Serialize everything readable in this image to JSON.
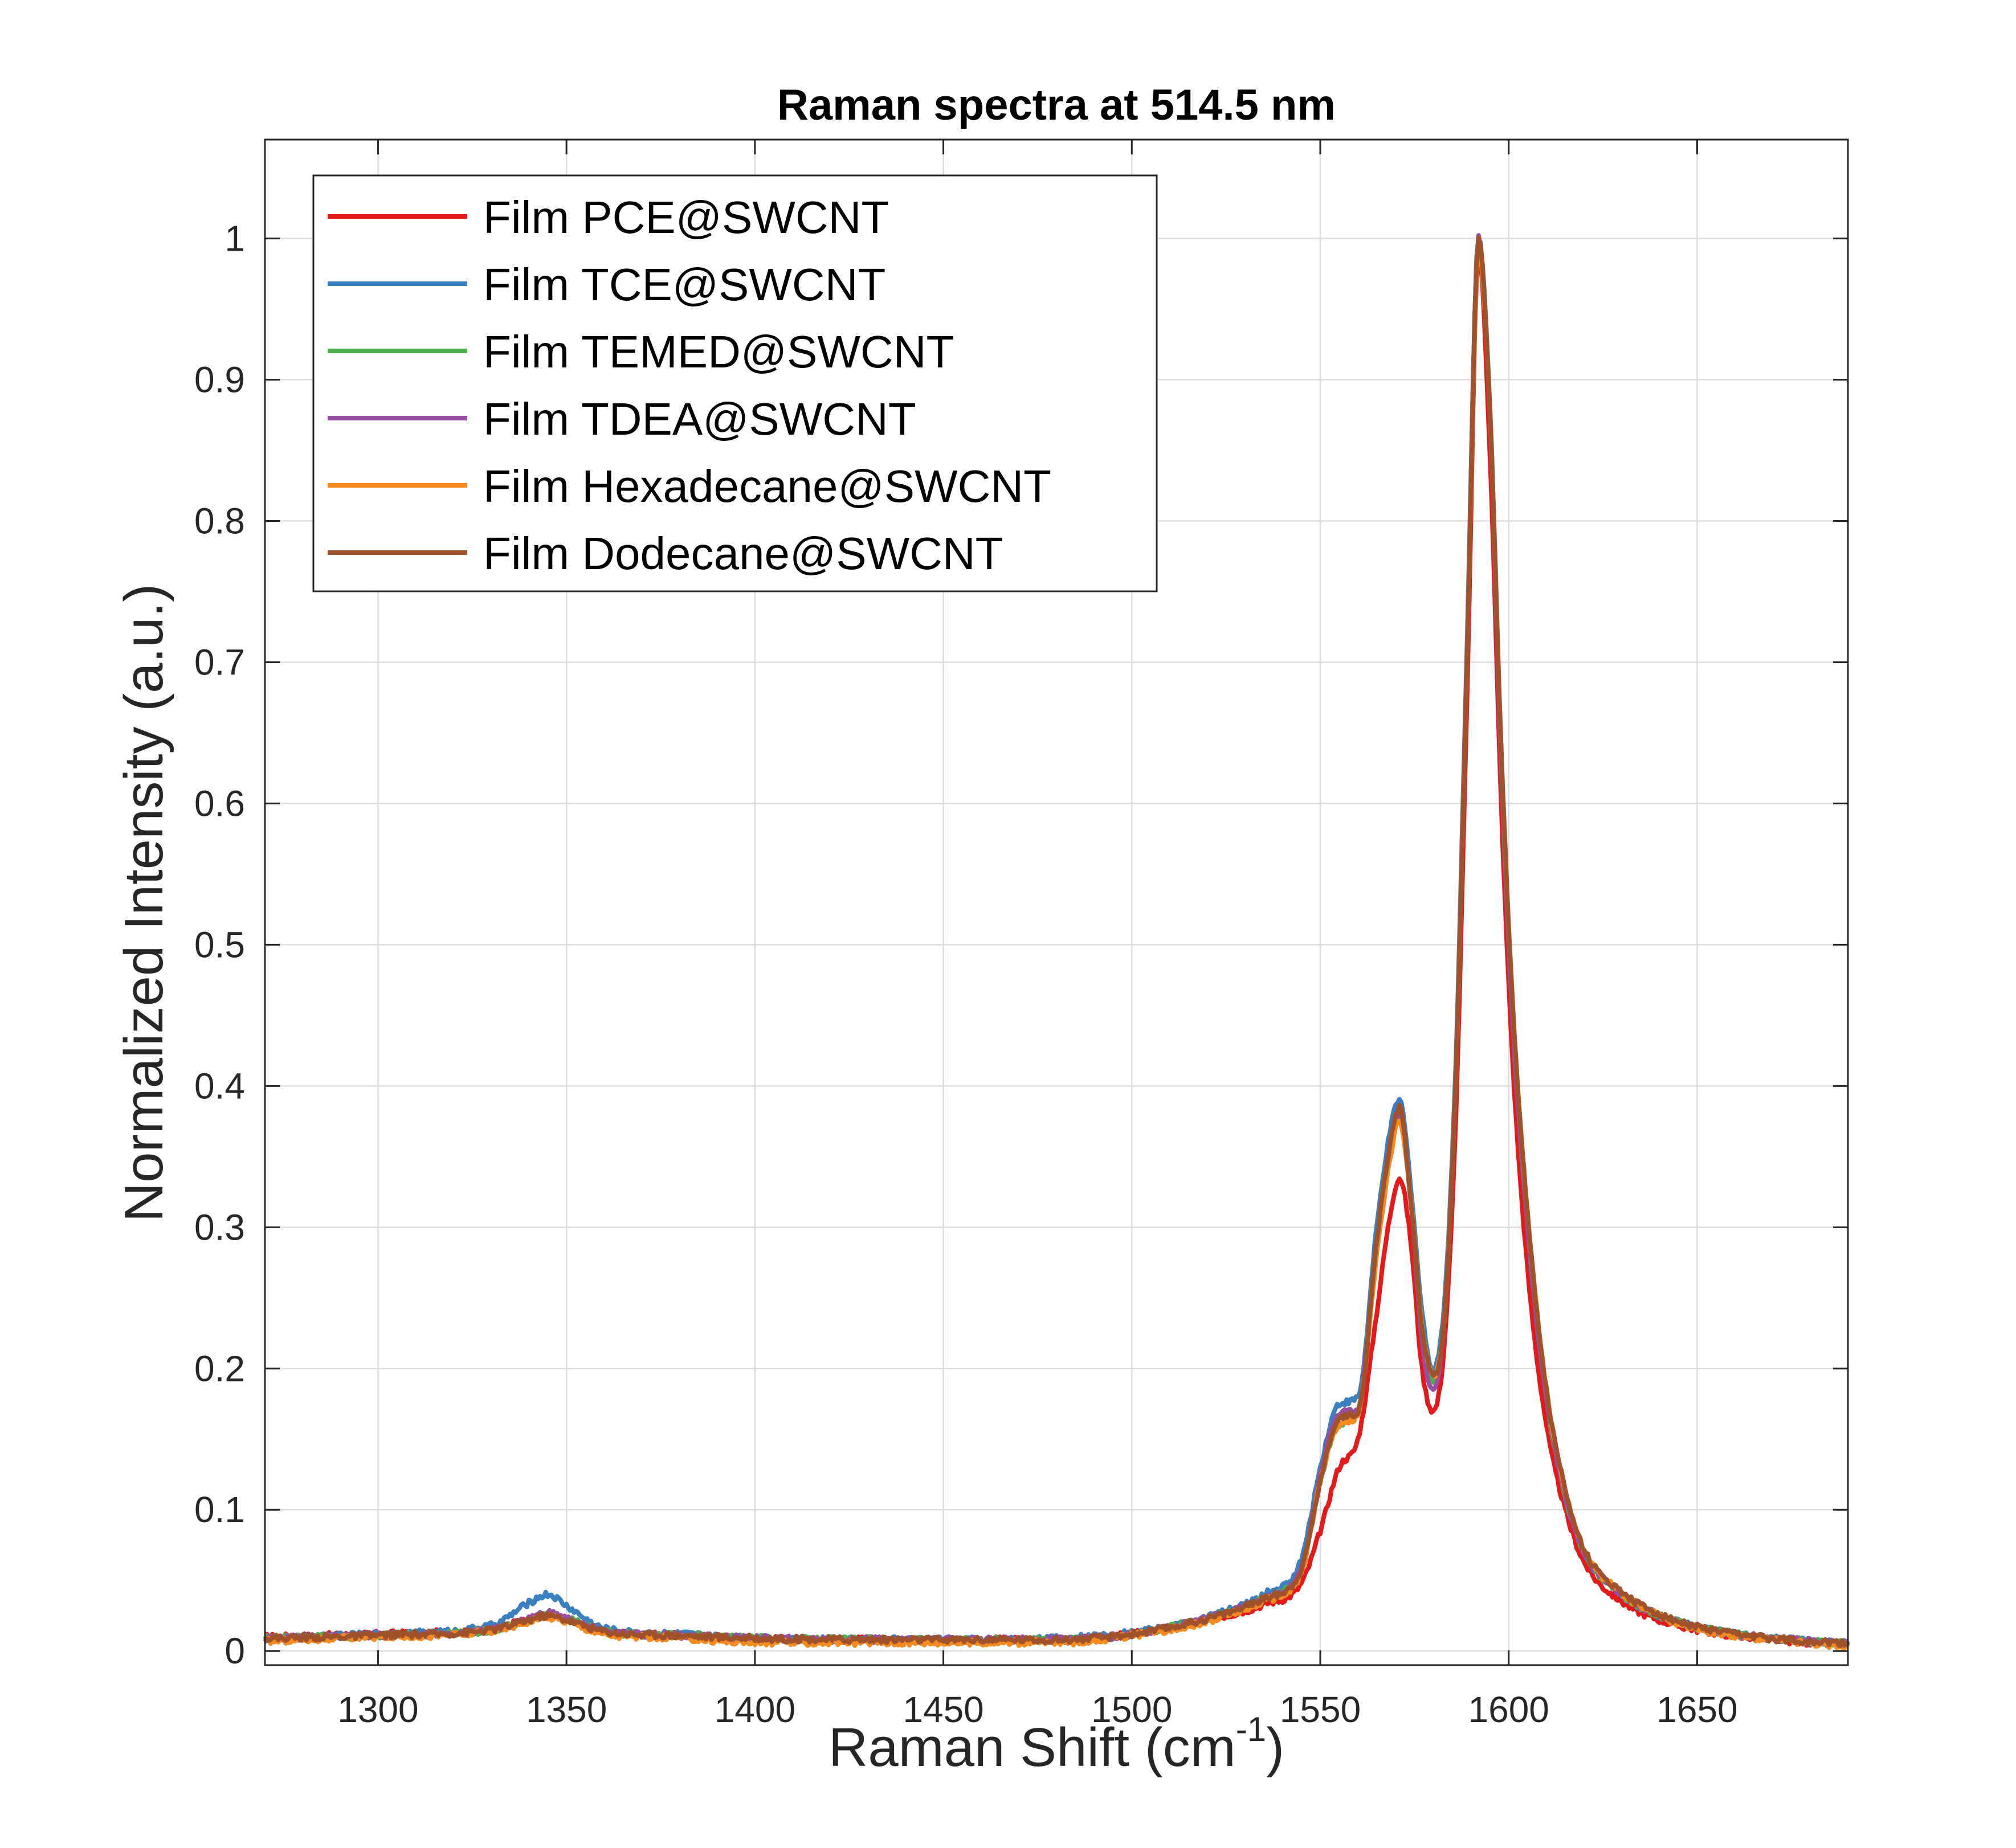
{
  "chart_data": {
    "type": "line",
    "title": "Raman spectra at 514.5 nm",
    "xlabel": "Raman Shift (cm",
    "xlabel_superscript": "-1",
    "xlabel_suffix": ")",
    "ylabel": "Normalized Intensity (a.u.)",
    "xlim": [
      1270,
      1690
    ],
    "ylim": [
      -0.01,
      1.07
    ],
    "xticks": [
      1300,
      1350,
      1400,
      1450,
      1500,
      1550,
      1600,
      1650
    ],
    "xtick_labels": [
      "1300",
      "1350",
      "1400",
      "1450",
      "1500",
      "1550",
      "1600",
      "1650"
    ],
    "yticks": [
      0,
      0.1,
      0.2,
      0.3,
      0.4,
      0.5,
      0.6,
      0.7,
      0.8,
      0.9,
      1
    ],
    "ytick_labels": [
      "0",
      "0.1",
      "0.2",
      "0.3",
      "0.4",
      "0.5",
      "0.6",
      "0.7",
      "0.8",
      "0.9",
      "1"
    ],
    "grid": true,
    "legend_position": "top-left",
    "series": [
      {
        "name": "Film PCE@SWCNT",
        "color": "#e31a1c",
        "x": [
          1270,
          1300,
          1330,
          1340,
          1345,
          1350,
          1360,
          1380,
          1400,
          1450,
          1480,
          1500,
          1520,
          1535,
          1545,
          1550,
          1555,
          1560,
          1565,
          1568,
          1571,
          1574,
          1577,
          1580,
          1583,
          1586,
          1589,
          1592,
          1595,
          1598,
          1601,
          1605,
          1610,
          1615,
          1620,
          1630,
          1640,
          1650,
          1660,
          1670,
          1690
        ],
        "y": [
          0.01,
          0.012,
          0.016,
          0.022,
          0.025,
          0.022,
          0.014,
          0.011,
          0.009,
          0.008,
          0.008,
          0.012,
          0.022,
          0.033,
          0.048,
          0.085,
          0.13,
          0.15,
          0.24,
          0.3,
          0.335,
          0.29,
          0.2,
          0.17,
          0.22,
          0.38,
          0.68,
          0.99,
          0.85,
          0.6,
          0.42,
          0.27,
          0.16,
          0.1,
          0.063,
          0.035,
          0.022,
          0.015,
          0.011,
          0.008,
          0.004
        ]
      },
      {
        "name": "Film TCE@SWCNT",
        "color": "#3a7fc0",
        "x": [
          1270,
          1300,
          1330,
          1340,
          1345,
          1350,
          1360,
          1380,
          1400,
          1450,
          1480,
          1500,
          1520,
          1535,
          1545,
          1550,
          1555,
          1560,
          1565,
          1568,
          1571,
          1574,
          1577,
          1580,
          1583,
          1586,
          1589,
          1592,
          1595,
          1598,
          1601,
          1605,
          1610,
          1615,
          1620,
          1630,
          1640,
          1650,
          1660,
          1670,
          1690
        ],
        "y": [
          0.008,
          0.012,
          0.018,
          0.034,
          0.04,
          0.032,
          0.016,
          0.012,
          0.009,
          0.008,
          0.009,
          0.013,
          0.024,
          0.04,
          0.065,
          0.13,
          0.175,
          0.18,
          0.3,
          0.36,
          0.39,
          0.33,
          0.24,
          0.2,
          0.25,
          0.42,
          0.72,
          1.0,
          0.88,
          0.63,
          0.45,
          0.3,
          0.18,
          0.11,
          0.07,
          0.04,
          0.025,
          0.017,
          0.012,
          0.009,
          0.005
        ]
      },
      {
        "name": "Film TEMED@SWCNT",
        "color": "#4daf4a",
        "x": [
          1270,
          1300,
          1330,
          1340,
          1345,
          1350,
          1360,
          1380,
          1400,
          1450,
          1480,
          1500,
          1520,
          1535,
          1545,
          1550,
          1555,
          1560,
          1565,
          1568,
          1571,
          1574,
          1577,
          1580,
          1583,
          1586,
          1589,
          1592,
          1595,
          1598,
          1601,
          1605,
          1610,
          1615,
          1620,
          1630,
          1640,
          1650,
          1660,
          1670,
          1690
        ],
        "y": [
          0.009,
          0.011,
          0.015,
          0.022,
          0.026,
          0.023,
          0.014,
          0.011,
          0.009,
          0.008,
          0.008,
          0.012,
          0.023,
          0.037,
          0.058,
          0.12,
          0.16,
          0.17,
          0.29,
          0.35,
          0.38,
          0.32,
          0.23,
          0.19,
          0.24,
          0.41,
          0.71,
          1.0,
          0.88,
          0.63,
          0.45,
          0.3,
          0.18,
          0.11,
          0.07,
          0.04,
          0.025,
          0.017,
          0.012,
          0.009,
          0.005
        ]
      },
      {
        "name": "Film TDEA@SWCNT",
        "color": "#984ea3",
        "x": [
          1270,
          1300,
          1330,
          1340,
          1345,
          1350,
          1360,
          1380,
          1400,
          1450,
          1480,
          1500,
          1520,
          1535,
          1545,
          1550,
          1555,
          1560,
          1565,
          1568,
          1571,
          1574,
          1577,
          1580,
          1583,
          1586,
          1589,
          1592,
          1595,
          1598,
          1601,
          1605,
          1610,
          1615,
          1620,
          1630,
          1640,
          1650,
          1660,
          1670,
          1690
        ],
        "y": [
          0.009,
          0.011,
          0.015,
          0.023,
          0.027,
          0.023,
          0.014,
          0.011,
          0.009,
          0.008,
          0.008,
          0.012,
          0.023,
          0.037,
          0.058,
          0.125,
          0.168,
          0.172,
          0.29,
          0.35,
          0.38,
          0.32,
          0.22,
          0.185,
          0.24,
          0.41,
          0.71,
          1.0,
          0.88,
          0.63,
          0.45,
          0.3,
          0.18,
          0.11,
          0.07,
          0.04,
          0.025,
          0.017,
          0.012,
          0.009,
          0.005
        ]
      },
      {
        "name": "Film Hexadecane@SWCNT",
        "color": "#f58a1f",
        "x": [
          1270,
          1300,
          1330,
          1340,
          1345,
          1350,
          1360,
          1380,
          1400,
          1450,
          1480,
          1500,
          1520,
          1535,
          1545,
          1550,
          1555,
          1560,
          1565,
          1568,
          1571,
          1574,
          1577,
          1580,
          1583,
          1586,
          1589,
          1592,
          1595,
          1598,
          1601,
          1605,
          1610,
          1615,
          1620,
          1630,
          1640,
          1650,
          1660,
          1670,
          1690
        ],
        "y": [
          0.007,
          0.01,
          0.014,
          0.021,
          0.024,
          0.021,
          0.012,
          0.009,
          0.006,
          0.006,
          0.006,
          0.011,
          0.021,
          0.035,
          0.055,
          0.12,
          0.16,
          0.168,
          0.28,
          0.34,
          0.375,
          0.32,
          0.23,
          0.195,
          0.24,
          0.41,
          0.71,
          0.99,
          0.88,
          0.64,
          0.46,
          0.31,
          0.185,
          0.115,
          0.072,
          0.041,
          0.025,
          0.016,
          0.011,
          0.008,
          0.003
        ]
      },
      {
        "name": "Film Dodecane@SWCNT",
        "color": "#a0522d",
        "x": [
          1270,
          1300,
          1330,
          1340,
          1345,
          1350,
          1360,
          1380,
          1400,
          1450,
          1480,
          1500,
          1520,
          1535,
          1545,
          1550,
          1555,
          1560,
          1565,
          1568,
          1571,
          1574,
          1577,
          1580,
          1583,
          1586,
          1589,
          1592,
          1595,
          1598,
          1601,
          1605,
          1610,
          1615,
          1620,
          1630,
          1640,
          1650,
          1660,
          1670,
          1690
        ],
        "y": [
          0.009,
          0.011,
          0.015,
          0.022,
          0.025,
          0.022,
          0.014,
          0.011,
          0.009,
          0.008,
          0.008,
          0.012,
          0.023,
          0.037,
          0.058,
          0.12,
          0.165,
          0.17,
          0.29,
          0.35,
          0.385,
          0.32,
          0.23,
          0.195,
          0.24,
          0.41,
          0.71,
          1.0,
          0.88,
          0.64,
          0.46,
          0.31,
          0.185,
          0.115,
          0.072,
          0.042,
          0.026,
          0.017,
          0.012,
          0.009,
          0.005
        ]
      }
    ]
  }
}
